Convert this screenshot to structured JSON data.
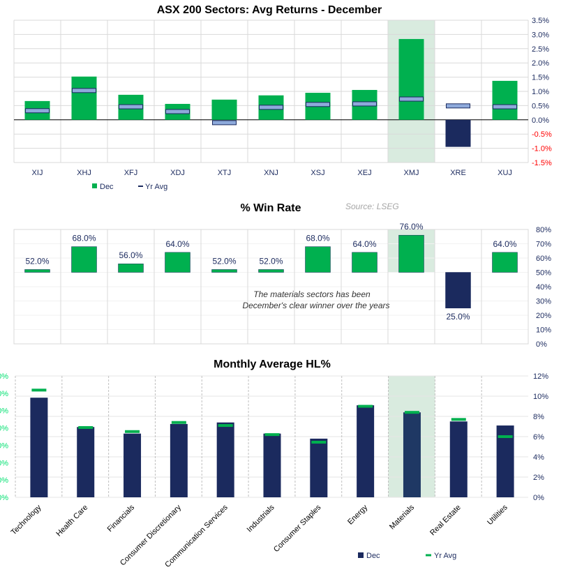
{
  "colors": {
    "dec": "#00b04f",
    "yr_avg": "#8eaadb",
    "navy": "#1b2a5e",
    "highlight": "#d9ebdf",
    "negative": "#ff0000",
    "left_axis": "#00e070"
  },
  "source": "Source:  LSEG",
  "annotation": [
    "The materials sectors has been",
    "December's clear winner over the years"
  ],
  "chart_data": [
    {
      "type": "bar",
      "title": "ASX 200 Sectors: Avg Returns - December",
      "categories": [
        "XIJ",
        "XHJ",
        "XFJ",
        "XDJ",
        "XTJ",
        "XNJ",
        "XSJ",
        "XEJ",
        "XMJ",
        "XRE",
        "XUJ"
      ],
      "series": [
        {
          "name": "Dec",
          "values": [
            0.66,
            1.52,
            0.88,
            0.56,
            0.71,
            0.86,
            0.95,
            1.05,
            2.84,
            -0.95,
            1.37
          ]
        },
        {
          "name": "Yr Avg",
          "values": [
            0.32,
            1.03,
            0.46,
            0.29,
            -0.1,
            0.44,
            0.54,
            0.56,
            0.73,
            0.49,
            0.46
          ]
        }
      ],
      "ylim": [
        -1.5,
        3.5
      ],
      "yticks": [
        "3.5%",
        "3.0%",
        "2.5%",
        "2.0%",
        "1.5%",
        "1.0%",
        "0.5%",
        "0.0%",
        "-0.5%",
        "-1.0%",
        "-1.5%"
      ],
      "highlight": "XMJ",
      "grid": true,
      "legend": "bottom-left"
    },
    {
      "type": "bar",
      "title": "% Win Rate",
      "categories": [
        "XIJ",
        "XHJ",
        "XFJ",
        "XDJ",
        "XTJ",
        "XNJ",
        "XSJ",
        "XEJ",
        "XMJ",
        "XRE",
        "XUJ"
      ],
      "values": [
        52,
        68,
        56,
        64,
        52,
        52,
        68,
        64,
        76,
        25,
        64
      ],
      "labels": [
        "52.0%",
        "68.0%",
        "56.0%",
        "64.0%",
        "52.0%",
        "52.0%",
        "68.0%",
        "64.0%",
        "76.0%",
        "25.0%",
        "64.0%"
      ],
      "baseline": 50,
      "ylim": [
        0,
        80
      ],
      "yticks": [
        "80%",
        "70%",
        "60%",
        "50%",
        "40%",
        "30%",
        "20%",
        "10%",
        "0%"
      ],
      "highlight": "XMJ",
      "grid": true
    },
    {
      "type": "bar",
      "title": "Monthly Average HL%",
      "categories": [
        "Technology",
        "Health Care",
        "Financials",
        "Consumer Discretionary",
        "Communication Services",
        "Industrials",
        "Consumer Staples",
        "Energy",
        "Materials",
        "Real Estate",
        "Utilities"
      ],
      "series": [
        {
          "name": "Dec",
          "values": [
            9.85,
            6.95,
            6.3,
            7.25,
            7.4,
            6.3,
            5.8,
            9.1,
            8.4,
            7.5,
            7.1
          ]
        },
        {
          "name": "Yr Avg",
          "values": [
            10.6,
            6.9,
            6.5,
            7.4,
            7.1,
            6.2,
            5.45,
            9.0,
            8.4,
            7.7,
            6.0
          ]
        }
      ],
      "ylim": [
        0,
        12
      ],
      "yticks": [
        "12%",
        "10%",
        "8%",
        "6%",
        "4%",
        "2%",
        "0%"
      ],
      "left_ticks": [
        "0%",
        "0%",
        "0%",
        "0%",
        "0%",
        "0%",
        "0%",
        "0%"
      ],
      "highlight": "Materials",
      "grid": true,
      "legend": "bottom"
    }
  ]
}
